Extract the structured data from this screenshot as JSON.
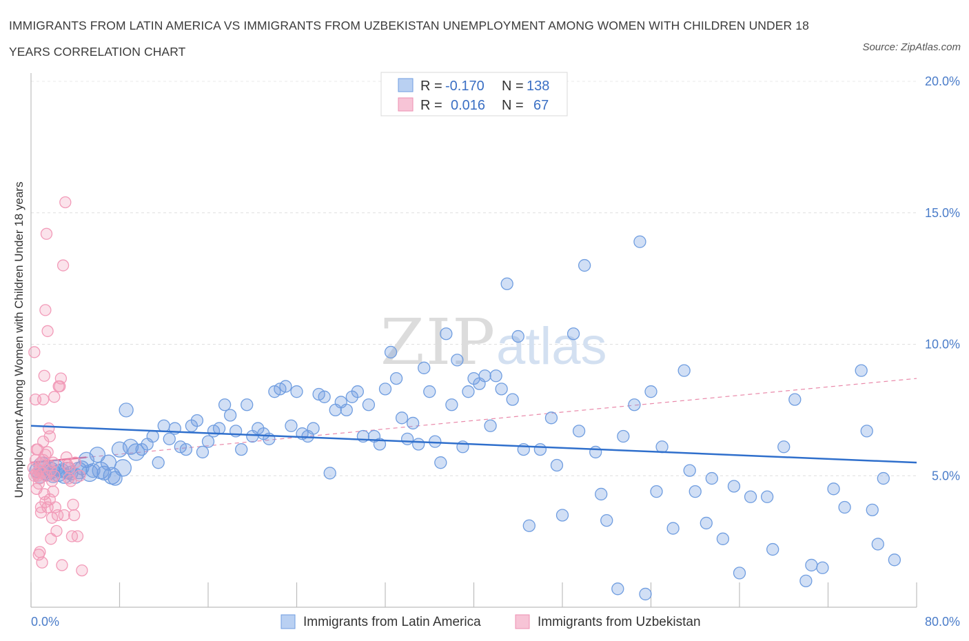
{
  "title": "IMMIGRANTS FROM LATIN AMERICA VS IMMIGRANTS FROM UZBEKISTAN UNEMPLOYMENT AMONG WOMEN WITH CHILDREN UNDER 18 YEARS CORRELATION CHART",
  "source": "Source: ZipAtlas.com",
  "watermark": {
    "zip": "ZIP",
    "atlas": "atlas"
  },
  "legend_top": [
    {
      "r_label": "R =",
      "r_value": "-0.170",
      "n_label": "N =",
      "n_value": "138"
    },
    {
      "r_label": "R =",
      "r_value": "0.016",
      "n_label": "N =",
      "n_value": "67"
    }
  ],
  "chart_data": {
    "type": "scatter",
    "title": "IMMIGRANTS FROM LATIN AMERICA VS IMMIGRANTS FROM UZBEKISTAN UNEMPLOYMENT AMONG WOMEN WITH CHILDREN UNDER 18 YEARS CORRELATION CHART",
    "xlabel": "",
    "ylabel": "Unemployment Among Women with Children Under 18 years",
    "xlim": [
      0,
      80
    ],
    "ylim": [
      0,
      20
    ],
    "x_tick_labels": [
      "0.0%",
      "80.0%"
    ],
    "y_tick_labels": [
      "5.0%",
      "10.0%",
      "15.0%",
      "20.0%"
    ],
    "y_ticks": [
      5,
      10,
      15,
      20
    ],
    "grid": true,
    "legend_position": "top-center",
    "colors": {
      "latin": "#6f9de0",
      "uzbek": "#f29ab8",
      "latin_line": "#2f6fcc",
      "uzbek_line": "#e46a94"
    },
    "series": [
      {
        "name": "Immigrants from Latin America",
        "r": -0.17,
        "n": 138,
        "trend": {
          "x": [
            0,
            80
          ],
          "y": [
            6.9,
            5.5
          ]
        },
        "points": [
          [
            0.5,
            5.2
          ],
          [
            0.8,
            5.0
          ],
          [
            1.0,
            5.4
          ],
          [
            1.2,
            5.3
          ],
          [
            1.5,
            5.1
          ],
          [
            1.8,
            5.2
          ],
          [
            2.0,
            5.0
          ],
          [
            2.3,
            5.3
          ],
          [
            2.5,
            5.1
          ],
          [
            2.8,
            5.2
          ],
          [
            3.0,
            5.0
          ],
          [
            3.3,
            5.2
          ],
          [
            3.6,
            5.1
          ],
          [
            4.0,
            5.0
          ],
          [
            4.3,
            5.2
          ],
          [
            4.6,
            5.3
          ],
          [
            5.0,
            5.6
          ],
          [
            5.3,
            5.1
          ],
          [
            5.6,
            5.2
          ],
          [
            6.0,
            5.8
          ],
          [
            6.3,
            5.2
          ],
          [
            6.6,
            5.1
          ],
          [
            7.0,
            5.5
          ],
          [
            7.3,
            5.0
          ],
          [
            7.6,
            4.9
          ],
          [
            8.0,
            6.0
          ],
          [
            8.3,
            5.3
          ],
          [
            8.6,
            7.5
          ],
          [
            9.0,
            6.1
          ],
          [
            9.5,
            5.9
          ],
          [
            10.0,
            6.0
          ],
          [
            10.5,
            6.2
          ],
          [
            11.0,
            6.5
          ],
          [
            11.5,
            5.5
          ],
          [
            12.0,
            6.9
          ],
          [
            12.5,
            6.4
          ],
          [
            13.0,
            6.8
          ],
          [
            13.5,
            6.1
          ],
          [
            14.0,
            6.0
          ],
          [
            14.5,
            6.9
          ],
          [
            15.0,
            7.1
          ],
          [
            15.5,
            5.9
          ],
          [
            16.0,
            6.3
          ],
          [
            16.5,
            6.7
          ],
          [
            17.0,
            6.8
          ],
          [
            17.5,
            7.7
          ],
          [
            18.0,
            7.3
          ],
          [
            18.5,
            6.7
          ],
          [
            19.0,
            6.0
          ],
          [
            19.5,
            7.7
          ],
          [
            20.0,
            6.5
          ],
          [
            20.5,
            6.8
          ],
          [
            21.0,
            6.6
          ],
          [
            21.5,
            6.4
          ],
          [
            22.0,
            8.2
          ],
          [
            22.5,
            8.3
          ],
          [
            23.0,
            8.4
          ],
          [
            23.5,
            6.9
          ],
          [
            24.0,
            8.2
          ],
          [
            24.5,
            6.6
          ],
          [
            25.0,
            6.5
          ],
          [
            25.5,
            6.8
          ],
          [
            26.0,
            8.1
          ],
          [
            26.5,
            8.0
          ],
          [
            27.0,
            5.1
          ],
          [
            27.5,
            7.5
          ],
          [
            28.0,
            7.8
          ],
          [
            28.5,
            7.5
          ],
          [
            29.0,
            8.0
          ],
          [
            29.5,
            8.2
          ],
          [
            30.0,
            6.5
          ],
          [
            30.5,
            7.7
          ],
          [
            31.0,
            6.5
          ],
          [
            31.5,
            6.2
          ],
          [
            32.0,
            8.3
          ],
          [
            32.5,
            9.7
          ],
          [
            33.0,
            8.7
          ],
          [
            33.5,
            7.2
          ],
          [
            34.0,
            6.4
          ],
          [
            34.5,
            7.0
          ],
          [
            35.0,
            6.2
          ],
          [
            35.5,
            9.1
          ],
          [
            36.0,
            8.2
          ],
          [
            36.5,
            6.3
          ],
          [
            37.0,
            5.5
          ],
          [
            37.5,
            10.4
          ],
          [
            38.0,
            7.7
          ],
          [
            38.5,
            9.4
          ],
          [
            39.0,
            6.1
          ],
          [
            39.5,
            8.2
          ],
          [
            40.0,
            8.7
          ],
          [
            40.5,
            8.5
          ],
          [
            41.0,
            8.8
          ],
          [
            41.5,
            6.9
          ],
          [
            42.0,
            8.8
          ],
          [
            42.5,
            8.3
          ],
          [
            43.0,
            12.3
          ],
          [
            43.5,
            7.9
          ],
          [
            44.0,
            10.3
          ],
          [
            44.5,
            6.0
          ],
          [
            45.0,
            3.1
          ],
          [
            46.0,
            6.0
          ],
          [
            47.0,
            7.2
          ],
          [
            47.5,
            5.4
          ],
          [
            48.0,
            3.5
          ],
          [
            49.0,
            10.4
          ],
          [
            49.5,
            6.7
          ],
          [
            50.0,
            13.0
          ],
          [
            51.0,
            5.9
          ],
          [
            51.5,
            4.3
          ],
          [
            52.0,
            3.3
          ],
          [
            53.0,
            0.7
          ],
          [
            53.5,
            6.5
          ],
          [
            54.5,
            7.7
          ],
          [
            55.0,
            13.9
          ],
          [
            55.5,
            0.5
          ],
          [
            56.0,
            8.2
          ],
          [
            56.5,
            4.4
          ],
          [
            57.0,
            6.1
          ],
          [
            58.0,
            3.0
          ],
          [
            59.0,
            9.0
          ],
          [
            59.5,
            5.2
          ],
          [
            60.0,
            4.4
          ],
          [
            61.0,
            3.2
          ],
          [
            61.5,
            4.9
          ],
          [
            62.5,
            2.6
          ],
          [
            63.5,
            4.6
          ],
          [
            64.0,
            1.3
          ],
          [
            65.0,
            4.2
          ],
          [
            66.5,
            4.2
          ],
          [
            67.0,
            2.2
          ],
          [
            68.0,
            6.1
          ],
          [
            69.0,
            7.9
          ],
          [
            70.0,
            1.0
          ],
          [
            70.5,
            1.6
          ],
          [
            71.5,
            1.5
          ],
          [
            72.5,
            4.5
          ],
          [
            73.5,
            3.8
          ],
          [
            75.0,
            9.0
          ],
          [
            75.5,
            6.7
          ],
          [
            76.0,
            3.7
          ],
          [
            76.5,
            2.4
          ],
          [
            77.0,
            4.9
          ],
          [
            78.0,
            1.8
          ]
        ]
      },
      {
        "name": "Immigrants from Uzbekistan",
        "r": 0.016,
        "n": 67,
        "trend": {
          "x": [
            0,
            80
          ],
          "y": [
            5.5,
            8.7
          ]
        },
        "points": [
          [
            0.2,
            5.3
          ],
          [
            0.3,
            5.0
          ],
          [
            0.4,
            5.6
          ],
          [
            0.5,
            4.5
          ],
          [
            0.6,
            6.0
          ],
          [
            0.7,
            5.2
          ],
          [
            0.8,
            4.9
          ],
          [
            0.9,
            5.5
          ],
          [
            1.0,
            5.1
          ],
          [
            1.1,
            6.3
          ],
          [
            1.2,
            4.3
          ],
          [
            1.3,
            5.8
          ],
          [
            1.4,
            5.0
          ],
          [
            1.5,
            3.8
          ],
          [
            1.6,
            5.4
          ],
          [
            1.7,
            4.1
          ],
          [
            1.8,
            5.2
          ],
          [
            1.9,
            4.8
          ],
          [
            2.0,
            5.5
          ],
          [
            2.1,
            5.0
          ],
          [
            0.3,
            9.7
          ],
          [
            0.4,
            7.9
          ],
          [
            0.5,
            6.0
          ],
          [
            0.6,
            5.0
          ],
          [
            0.7,
            2.0
          ],
          [
            0.8,
            2.1
          ],
          [
            0.9,
            3.8
          ],
          [
            1.0,
            1.7
          ],
          [
            1.1,
            7.9
          ],
          [
            1.2,
            8.8
          ],
          [
            1.3,
            11.3
          ],
          [
            1.4,
            14.2
          ],
          [
            1.5,
            10.5
          ],
          [
            1.6,
            6.8
          ],
          [
            1.7,
            6.5
          ],
          [
            1.8,
            2.6
          ],
          [
            1.9,
            3.4
          ],
          [
            2.0,
            4.4
          ],
          [
            2.1,
            8.0
          ],
          [
            2.2,
            3.8
          ],
          [
            2.3,
            2.9
          ],
          [
            2.4,
            3.5
          ],
          [
            2.5,
            8.4
          ],
          [
            2.6,
            8.4
          ],
          [
            2.7,
            8.7
          ],
          [
            2.8,
            1.6
          ],
          [
            2.9,
            13.0
          ],
          [
            3.0,
            3.5
          ],
          [
            3.1,
            15.4
          ],
          [
            3.2,
            5.7
          ],
          [
            3.3,
            5.4
          ],
          [
            3.4,
            4.9
          ],
          [
            3.5,
            5.3
          ],
          [
            3.6,
            4.8
          ],
          [
            3.7,
            2.7
          ],
          [
            3.8,
            3.9
          ],
          [
            3.9,
            3.5
          ],
          [
            4.0,
            5.5
          ],
          [
            4.2,
            2.7
          ],
          [
            4.4,
            5.0
          ],
          [
            4.6,
            1.4
          ],
          [
            0.5,
            5.1
          ],
          [
            0.7,
            4.7
          ],
          [
            0.9,
            3.6
          ],
          [
            1.1,
            5.6
          ],
          [
            1.3,
            4.0
          ],
          [
            1.5,
            5.9
          ]
        ]
      }
    ]
  },
  "bottom_legend": [
    "Immigrants from Latin America",
    "Immigrants from Uzbekistan"
  ]
}
